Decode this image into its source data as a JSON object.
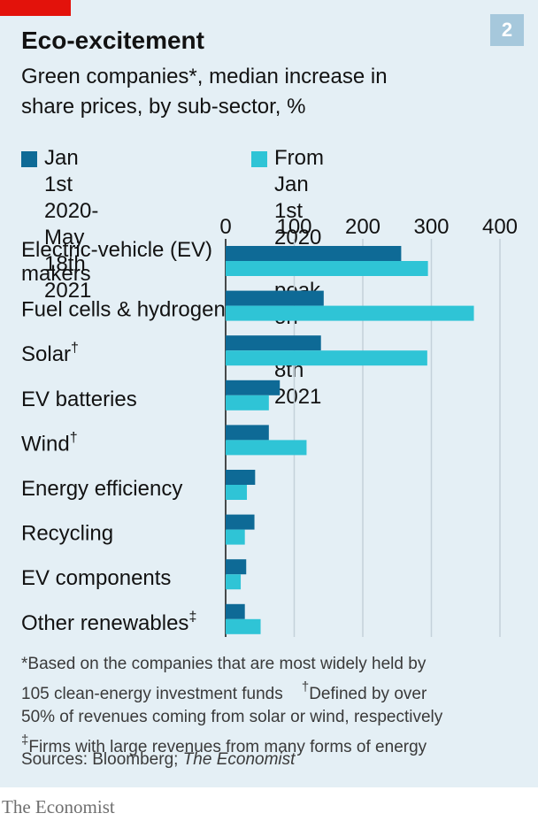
{
  "header": {
    "title": "Eco-excitement",
    "badge": "2",
    "subtitle": "Green companies*, median increase in share prices, by sub-sector, %"
  },
  "colors": {
    "series1": "#0e6a96",
    "series2": "#2fc4d6",
    "accent_red": "#e3120b",
    "panel_bg": "#e4eff5",
    "grid": "#c4d1da"
  },
  "chart_data": {
    "type": "bar",
    "orientation": "horizontal",
    "xlim": [
      0,
      400
    ],
    "xticks": [
      0,
      100,
      200,
      300,
      400
    ],
    "categories": [
      {
        "label": "Electric-vehicle (EV) makers",
        "lines": [
          "Electric-vehicle (EV)",
          "makers"
        ],
        "mark": ""
      },
      {
        "label": "Fuel cells & hydrogen",
        "lines": [
          "Fuel cells & hydrogen"
        ],
        "mark": ""
      },
      {
        "label": "Solar",
        "lines": [
          "Solar"
        ],
        "mark": "†"
      },
      {
        "label": "EV batteries",
        "lines": [
          "EV batteries"
        ],
        "mark": ""
      },
      {
        "label": "Wind",
        "lines": [
          "Wind"
        ],
        "mark": "†"
      },
      {
        "label": "Energy efficiency",
        "lines": [
          "Energy efficiency"
        ],
        "mark": ""
      },
      {
        "label": "Recycling",
        "lines": [
          "Recycling"
        ],
        "mark": ""
      },
      {
        "label": "EV components",
        "lines": [
          "EV components"
        ],
        "mark": ""
      },
      {
        "label": "Other renewables",
        "lines": [
          "Other renewables"
        ],
        "mark": "‡"
      }
    ],
    "series": [
      {
        "name": "Jan 1st 2020-\nMay 18th 2021",
        "values": [
          256,
          143,
          139,
          79,
          63,
          43,
          42,
          30,
          28
        ]
      },
      {
        "name": "From Jan 1st 2020 to\npeak on Jan 8th 2021",
        "values": [
          295,
          362,
          294,
          63,
          118,
          31,
          28,
          22,
          51
        ]
      }
    ],
    "grid": true,
    "legend": "top"
  },
  "footer": {
    "note_1a": "*Based on the companies that are most widely held by",
    "note_1b": "105 clean-energy investment funds",
    "note_2_mark": "†",
    "note_2a": "Defined by over",
    "note_2b": "50% of revenues coming from solar or wind, respectively",
    "note_3_mark": "‡",
    "note_3": "Firms with large revenues from many forms of energy",
    "source_prefix": "Sources: Bloomberg; ",
    "source_italic": "The Economist",
    "brand": "The Economist"
  }
}
